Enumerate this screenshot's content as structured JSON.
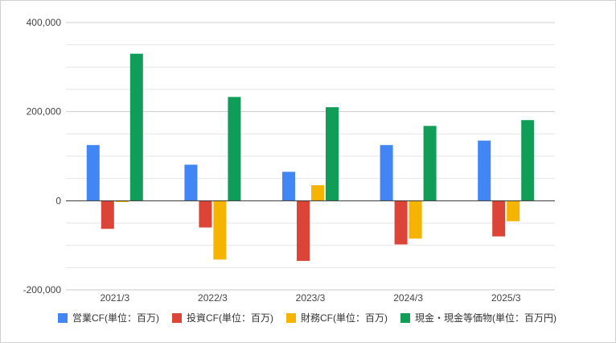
{
  "chart_data": {
    "type": "bar",
    "categories": [
      "2021/3",
      "2022/3",
      "2023/3",
      "2024/3",
      "2025/3"
    ],
    "series": [
      {
        "name": "営業CF(単位：百万)",
        "color": "#4285f4",
        "values": [
          125000,
          81000,
          65000,
          125000,
          135000
        ]
      },
      {
        "name": "投資CF(単位：百万)",
        "color": "#db4437",
        "values": [
          -63000,
          -60000,
          -135000,
          -98000,
          -80000
        ]
      },
      {
        "name": "財務CF(単位：百万)",
        "color": "#f4b400",
        "values": [
          -3000,
          -132000,
          35000,
          -85000,
          -46000
        ]
      },
      {
        "name": "現金・現金等価物(単位：百万円)",
        "color": "#0f9d58",
        "values": [
          330000,
          233000,
          210000,
          168000,
          181000
        ]
      }
    ],
    "y_ticks": [
      "400,000",
      "200,000",
      "0",
      "-200,000"
    ],
    "ylim": [
      -200000,
      400000
    ],
    "grid": true,
    "legend_position": "bottom"
  }
}
